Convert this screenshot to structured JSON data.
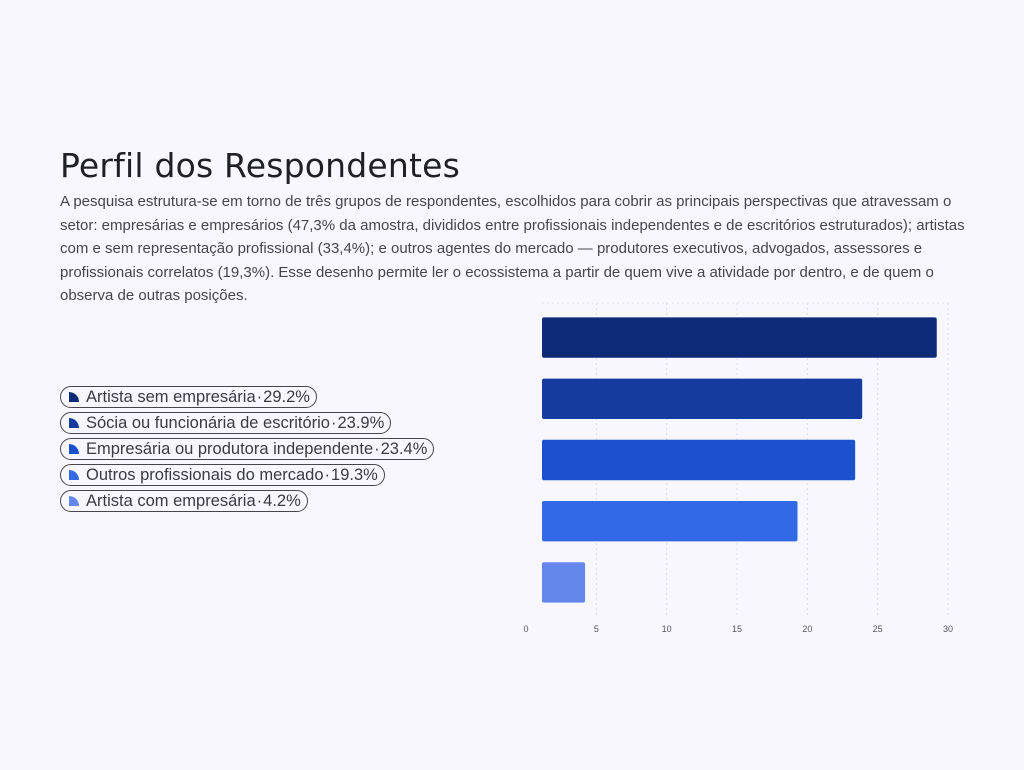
{
  "header": {
    "title": "Perfil dos Respondentes",
    "description": "A pesquisa estrutura-se em torno de três grupos de respondentes, escolhidos para cobrir as principais perspectivas que atravessam o setor: empresárias e empresários (47,3% da amostra, divididos entre profissionais independentes e de escritórios estruturados); artistas com e sem representação profissional (33,4%); e outros agentes do mercado — produtores executivos, advogados, assessores e profissionais correlatos (19,3%). Esse desenho permite ler o ecossistema a partir de quem vive a atividade por dentro, e de quem o observa de outras posições."
  },
  "legend": {
    "separator": "·",
    "items": [
      {
        "label": "Artista sem empresária",
        "value": "29.2%",
        "icon": "pie-slice-icon"
      },
      {
        "label": "Sócia ou funcionária de escritório",
        "value": "23.9%",
        "icon": "pie-slice-icon"
      },
      {
        "label": "Empresária ou produtora independente",
        "value": "23.4%",
        "icon": "pie-slice-icon"
      },
      {
        "label": "Outros profissionais do mercado",
        "value": "19.3%",
        "icon": "pie-slice-icon"
      },
      {
        "label": "Artista com empresária",
        "value": "4.2%",
        "icon": "pie-slice-icon"
      }
    ]
  },
  "chart_data": {
    "type": "bar",
    "orientation": "horizontal",
    "categories": [
      "Artista sem empresária",
      "Sócia ou funcionária de escritório",
      "Empresária ou produtora independente",
      "Outros profissionais do mercado",
      "Artista com empresária"
    ],
    "values": [
      29.2,
      23.9,
      23.4,
      19.3,
      4.2
    ],
    "colors": [
      "#0c2a78",
      "#143ba0",
      "#1b4fcc",
      "#316ae4",
      "#6387ec"
    ],
    "xlim": [
      0,
      30
    ],
    "xticks": [
      0,
      5,
      10,
      15,
      20,
      25,
      30
    ],
    "grid": true,
    "title": "",
    "xlabel": "",
    "ylabel": ""
  }
}
